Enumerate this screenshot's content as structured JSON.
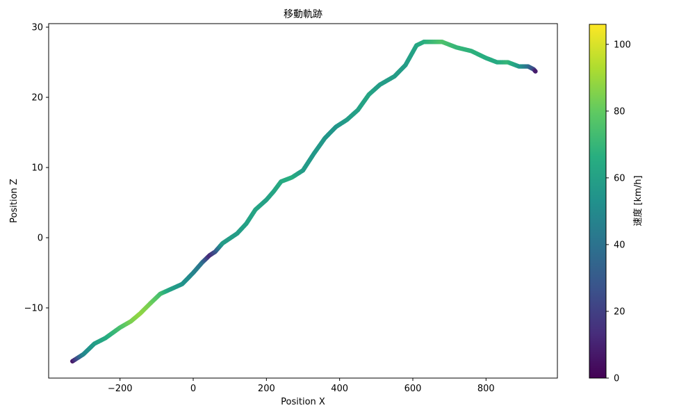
{
  "chart_data": {
    "type": "scatter",
    "title": "移動軌跡",
    "xlabel": "Position X",
    "ylabel": "Position Z",
    "xlim": [
      -395,
      995
    ],
    "ylim": [
      -20,
      30.5
    ],
    "xticks": [
      -200,
      0,
      200,
      400,
      600,
      800
    ],
    "yticks": [
      -10,
      0,
      10,
      20,
      30
    ],
    "xtick_labels": [
      "−200",
      "0",
      "200",
      "400",
      "600",
      "800"
    ],
    "ytick_labels": [
      "−10",
      "0",
      "10",
      "20",
      "30"
    ],
    "grid": false,
    "colormap": "viridis",
    "colorbar": {
      "label": "速度 [km/h]",
      "min": 0,
      "max": 106,
      "ticks": [
        0,
        20,
        40,
        60,
        80,
        100
      ],
      "tick_labels": [
        "0",
        "20",
        "40",
        "60",
        "80",
        "100"
      ]
    },
    "series": [
      {
        "points": [
          {
            "x": -330,
            "z": -17.6,
            "v": 5
          },
          {
            "x": -300,
            "z": -16.6,
            "v": 48
          },
          {
            "x": -270,
            "z": -15.1,
            "v": 58
          },
          {
            "x": -240,
            "z": -14.3,
            "v": 64
          },
          {
            "x": -200,
            "z": -12.8,
            "v": 74
          },
          {
            "x": -170,
            "z": -11.9,
            "v": 84
          },
          {
            "x": -145,
            "z": -10.8,
            "v": 88
          },
          {
            "x": -120,
            "z": -9.5,
            "v": 84
          },
          {
            "x": -90,
            "z": -8.0,
            "v": 74
          },
          {
            "x": -60,
            "z": -7.3,
            "v": 60
          },
          {
            "x": -30,
            "z": -6.6,
            "v": 55
          },
          {
            "x": 0,
            "z": -5.0,
            "v": 48
          },
          {
            "x": 25,
            "z": -3.5,
            "v": 40
          },
          {
            "x": 45,
            "z": -2.5,
            "v": 12
          },
          {
            "x": 60,
            "z": -2.0,
            "v": 25
          },
          {
            "x": 80,
            "z": -0.8,
            "v": 58
          },
          {
            "x": 120,
            "z": 0.6,
            "v": 58
          },
          {
            "x": 145,
            "z": 2.0,
            "v": 60
          },
          {
            "x": 170,
            "z": 4.0,
            "v": 62
          },
          {
            "x": 200,
            "z": 5.4,
            "v": 60
          },
          {
            "x": 220,
            "z": 6.6,
            "v": 62
          },
          {
            "x": 240,
            "z": 8.0,
            "v": 64
          },
          {
            "x": 270,
            "z": 8.6,
            "v": 66
          },
          {
            "x": 300,
            "z": 9.6,
            "v": 58
          },
          {
            "x": 330,
            "z": 12.0,
            "v": 56
          },
          {
            "x": 360,
            "z": 14.2,
            "v": 56
          },
          {
            "x": 390,
            "z": 15.8,
            "v": 55
          },
          {
            "x": 420,
            "z": 16.8,
            "v": 58
          },
          {
            "x": 450,
            "z": 18.2,
            "v": 60
          },
          {
            "x": 480,
            "z": 20.4,
            "v": 62
          },
          {
            "x": 510,
            "z": 21.8,
            "v": 58
          },
          {
            "x": 550,
            "z": 23.0,
            "v": 58
          },
          {
            "x": 580,
            "z": 24.6,
            "v": 58
          },
          {
            "x": 610,
            "z": 27.4,
            "v": 62
          },
          {
            "x": 630,
            "z": 27.9,
            "v": 66
          },
          {
            "x": 660,
            "z": 27.9,
            "v": 72
          },
          {
            "x": 680,
            "z": 27.9,
            "v": 76
          },
          {
            "x": 720,
            "z": 27.1,
            "v": 70
          },
          {
            "x": 760,
            "z": 26.6,
            "v": 68
          },
          {
            "x": 800,
            "z": 25.6,
            "v": 66
          },
          {
            "x": 830,
            "z": 25.0,
            "v": 64
          },
          {
            "x": 860,
            "z": 25.0,
            "v": 70
          },
          {
            "x": 890,
            "z": 24.4,
            "v": 58
          },
          {
            "x": 915,
            "z": 24.4,
            "v": 40
          },
          {
            "x": 930,
            "z": 24.0,
            "v": 25
          },
          {
            "x": 935,
            "z": 23.7,
            "v": 8
          }
        ]
      }
    ]
  }
}
